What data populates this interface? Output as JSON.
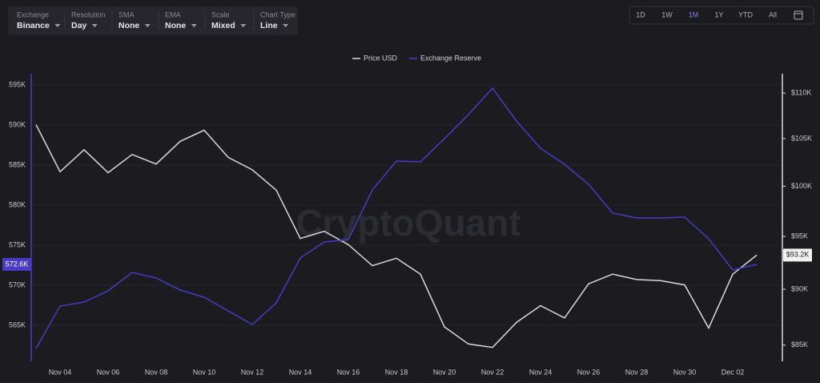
{
  "toolbar": {
    "dropdowns": [
      {
        "label": "Exchange",
        "value": "Binance"
      },
      {
        "label": "Resolution",
        "value": "Day"
      },
      {
        "label": "SMA",
        "value": "None"
      },
      {
        "label": "EMA",
        "value": "None"
      },
      {
        "label": "Scale",
        "value": "Mixed"
      },
      {
        "label": "Chart Type",
        "value": "Line"
      }
    ],
    "ranges": [
      "1D",
      "1W",
      "1M",
      "1Y",
      "YTD",
      "All"
    ],
    "active_range": "1M"
  },
  "chart_data": {
    "type": "line",
    "watermark": "CryptoQuant",
    "categories": [
      null,
      "Nov 04",
      null,
      "Nov 06",
      null,
      "Nov 08",
      null,
      "Nov 10",
      null,
      "Nov 12",
      null,
      "Nov 14",
      null,
      "Nov 16",
      null,
      "Nov 18",
      null,
      "Nov 20",
      null,
      "Nov 22",
      null,
      "Nov 24",
      null,
      "Nov 26",
      null,
      "Nov 28",
      null,
      "Nov 30",
      null,
      "Dec 02",
      null
    ],
    "series": [
      {
        "name": "Price USD",
        "color": "#d9d9d9",
        "axis": "y2",
        "marker_label": "$93.2K",
        "values": [
          106500,
          101500,
          103800,
          101400,
          103300,
          102300,
          104700,
          105900,
          103000,
          101700,
          99600,
          94800,
          95500,
          94200,
          92200,
          92900,
          91400,
          86600,
          85100,
          84800,
          87000,
          88500,
          87400,
          90500,
          91400,
          90900,
          90800,
          90400,
          86500,
          91400,
          93200
        ]
      },
      {
        "name": "Exchange Reserve",
        "color": "#4b3bc4",
        "axis": "y",
        "marker_label": "572.6K",
        "values": [
          562100,
          567400,
          567900,
          569300,
          571600,
          570900,
          569400,
          568500,
          566800,
          565100,
          567800,
          573400,
          575400,
          575700,
          581900,
          585500,
          585400,
          588300,
          591300,
          594600,
          590500,
          587100,
          585100,
          582600,
          579000,
          578400,
          578400,
          578500,
          575800,
          571900,
          572600
        ]
      }
    ],
    "ylim": [
      560500,
      596400
    ],
    "yticks": [
      {
        "value": 565000,
        "label": "565K"
      },
      {
        "value": 570000,
        "label": "570K"
      },
      {
        "value": 575000,
        "label": "575K"
      },
      {
        "value": 580000,
        "label": "580K"
      },
      {
        "value": 585000,
        "label": "585K"
      },
      {
        "value": 590000,
        "label": "590K"
      },
      {
        "value": 595000,
        "label": "595K"
      }
    ],
    "y2lim": [
      83600,
      112200
    ],
    "y2scale": "log",
    "y2ticks": [
      {
        "value": 85000,
        "label": "$85K"
      },
      {
        "value": 90000,
        "label": "$90K"
      },
      {
        "value": 95000,
        "label": "$95K"
      },
      {
        "value": 100000,
        "label": "$100K"
      },
      {
        "value": 105000,
        "label": "$105K"
      },
      {
        "value": 110000,
        "label": "$110K"
      }
    ],
    "grid": true,
    "legend": "top"
  }
}
